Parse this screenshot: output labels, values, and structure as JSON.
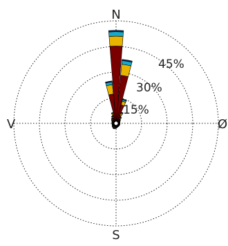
{
  "chart_data": {
    "type": "polar-bar",
    "title": "",
    "directions": {
      "north": "N",
      "east": "Ø",
      "south": "S",
      "west": "V"
    },
    "rings": [
      {
        "value": 15,
        "label": "15%"
      },
      {
        "value": 30,
        "label": "30%"
      },
      {
        "value": 45,
        "label": "45%"
      },
      {
        "value": 60,
        "label": ""
      }
    ],
    "rmax": 60,
    "grid": true,
    "sector_width_deg": 10,
    "colors": [
      "#7a0000",
      "#e8b400",
      "#19a8c8",
      "#0a2a5e"
    ],
    "sectors": [
      {
        "dir": 340,
        "stack": [
          4.0,
          0.8,
          0.4,
          0.2
        ]
      },
      {
        "dir": 350,
        "stack": [
          16.0,
          5.5,
          1.6,
          0.6
        ]
      },
      {
        "dir": 0,
        "stack": [
          44.0,
          5.8,
          2.6,
          0.8
        ]
      },
      {
        "dir": 10,
        "stack": [
          27.0,
          6.5,
          2.2,
          0.7
        ]
      },
      {
        "dir": 20,
        "stack": [
          10.0,
          2.2,
          1.0,
          0.4
        ]
      },
      {
        "dir": 30,
        "stack": [
          4.0,
          1.2,
          0.6,
          0.3
        ]
      },
      {
        "dir": 40,
        "stack": [
          2.2,
          0.6,
          0.4,
          0.2
        ]
      },
      {
        "dir": 50,
        "stack": [
          1.2,
          0.4,
          0.3,
          0.2
        ]
      },
      {
        "dir": 60,
        "stack": [
          0.8,
          0.3,
          0.2,
          0.2
        ]
      },
      {
        "dir": 70,
        "stack": [
          0.6,
          0.2,
          0.2,
          0.2
        ]
      },
      {
        "dir": 80,
        "stack": [
          0.5,
          0.2,
          0.2,
          0.2
        ]
      },
      {
        "dir": 90,
        "stack": [
          0.5,
          0.2,
          0.2,
          0.2
        ]
      },
      {
        "dir": 100,
        "stack": [
          0.5,
          0.2,
          0.2,
          0.2
        ]
      },
      {
        "dir": 110,
        "stack": [
          0.5,
          0.2,
          0.2,
          0.2
        ]
      },
      {
        "dir": 120,
        "stack": [
          0.5,
          0.2,
          0.2,
          0.2
        ]
      },
      {
        "dir": 130,
        "stack": [
          0.5,
          0.2,
          0.2,
          0.2
        ]
      },
      {
        "dir": 140,
        "stack": [
          0.5,
          0.2,
          0.2,
          0.2
        ]
      },
      {
        "dir": 150,
        "stack": [
          0.5,
          0.2,
          0.2,
          0.2
        ]
      },
      {
        "dir": 160,
        "stack": [
          0.6,
          0.2,
          0.2,
          0.2
        ]
      },
      {
        "dir": 170,
        "stack": [
          0.7,
          0.3,
          0.2,
          0.2
        ]
      },
      {
        "dir": 180,
        "stack": [
          0.8,
          0.4,
          0.3,
          0.2
        ]
      },
      {
        "dir": 190,
        "stack": [
          0.9,
          0.5,
          0.3,
          0.2
        ]
      },
      {
        "dir": 200,
        "stack": [
          1.0,
          0.6,
          0.4,
          0.2
        ]
      },
      {
        "dir": 210,
        "stack": [
          1.0,
          0.6,
          0.4,
          0.2
        ]
      },
      {
        "dir": 220,
        "stack": [
          0.9,
          0.5,
          0.3,
          0.2
        ]
      },
      {
        "dir": 230,
        "stack": [
          0.8,
          0.4,
          0.3,
          0.2
        ]
      },
      {
        "dir": 240,
        "stack": [
          0.7,
          0.3,
          0.2,
          0.2
        ]
      },
      {
        "dir": 250,
        "stack": [
          0.6,
          0.3,
          0.2,
          0.2
        ]
      },
      {
        "dir": 260,
        "stack": [
          0.6,
          0.2,
          0.2,
          0.2
        ]
      },
      {
        "dir": 270,
        "stack": [
          0.6,
          0.2,
          0.2,
          0.2
        ]
      },
      {
        "dir": 280,
        "stack": [
          0.6,
          0.2,
          0.2,
          0.2
        ]
      },
      {
        "dir": 290,
        "stack": [
          0.7,
          0.3,
          0.2,
          0.2
        ]
      },
      {
        "dir": 300,
        "stack": [
          0.9,
          0.4,
          0.2,
          0.2
        ]
      },
      {
        "dir": 310,
        "stack": [
          1.2,
          0.5,
          0.3,
          0.2
        ]
      },
      {
        "dir": 320,
        "stack": [
          1.6,
          0.6,
          0.3,
          0.2
        ]
      },
      {
        "dir": 330,
        "stack": [
          2.4,
          0.7,
          0.3,
          0.2
        ]
      }
    ]
  }
}
